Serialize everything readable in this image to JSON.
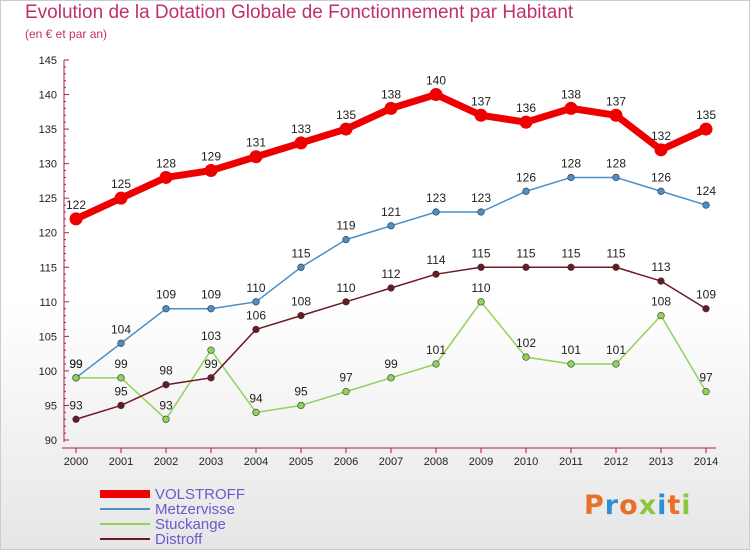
{
  "header": {
    "title": "Evolution de la Dotation Globale de Fonctionnement par Habitant",
    "subtitle": "(en € et par an)"
  },
  "logo": {
    "text": "Proxiti",
    "colors": [
      "#e8702a",
      "#2e8fd8",
      "#e8702a",
      "#8cc63f",
      "#2e8fd8",
      "#e8702a",
      "#8cc63f"
    ]
  },
  "chart_data": {
    "type": "line",
    "title": "Evolution de la Dotation Globale de Fonctionnement par Habitant",
    "subtitle": "(en € et par an)",
    "x": [
      "2000",
      "2001",
      "2002",
      "2003",
      "2004",
      "2005",
      "2006",
      "2007",
      "2008",
      "2009",
      "2010",
      "2011",
      "2012",
      "2013",
      "2014"
    ],
    "ylim": [
      90,
      145
    ],
    "yticks": [
      90,
      95,
      100,
      105,
      110,
      115,
      120,
      125,
      130,
      135,
      140,
      145
    ],
    "grid": false,
    "legend": "bottom-left",
    "series": [
      {
        "name": "VOLSTROFF",
        "color": "#ee0000",
        "emphasis": true,
        "values": [
          122,
          125,
          128,
          129,
          131,
          133,
          135,
          138,
          140,
          137,
          136,
          138,
          137,
          132,
          135
        ]
      },
      {
        "name": "Metzervisse",
        "color": "#4a8fc9",
        "emphasis": false,
        "values": [
          99,
          104,
          109,
          109,
          110,
          115,
          119,
          121,
          123,
          123,
          126,
          128,
          128,
          126,
          124
        ]
      },
      {
        "name": "Stuckange",
        "color": "#8ed35a",
        "emphasis": false,
        "values": [
          99,
          99,
          93,
          103,
          94,
          95,
          97,
          99,
          101,
          110,
          102,
          101,
          101,
          108,
          97
        ]
      },
      {
        "name": "Distroff",
        "color": "#6b1a24",
        "emphasis": false,
        "values": [
          93,
          95,
          98,
          99,
          106,
          108,
          110,
          112,
          114,
          115,
          115,
          115,
          115,
          113,
          109
        ]
      }
    ]
  }
}
